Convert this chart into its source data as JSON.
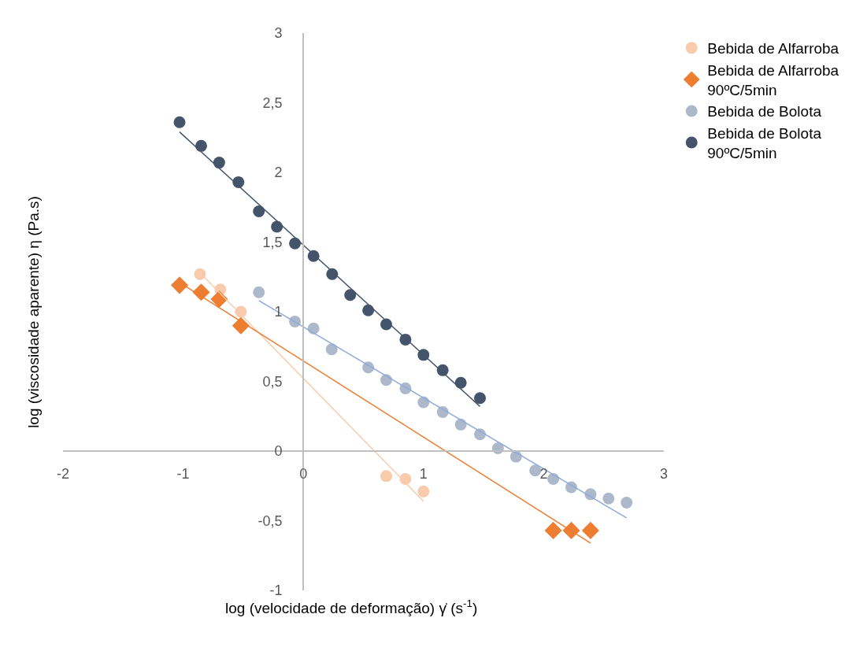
{
  "chart_data": {
    "type": "scatter",
    "xlabel": "log (velocidade de deformação) γ̇ (s$^{-1}$)",
    "ylabel": "log (viscosidade aparente) η (Pa.s)",
    "xlim": [
      -2,
      3
    ],
    "xticks": [
      -2,
      -1,
      0,
      1,
      2,
      3
    ],
    "ylim": [
      -1,
      3
    ],
    "yticks": [
      {
        "value": -1,
        "label": "-1"
      },
      {
        "value": -0.5,
        "label": "-0,5"
      },
      0,
      {
        "value": 0.5,
        "label": "0,5"
      },
      1,
      {
        "value": 1.5,
        "label": "1,5"
      },
      2,
      {
        "value": 2.5,
        "label": "2,5"
      },
      3
    ],
    "legend": "top right",
    "series": [
      {
        "name": "Bebida de Alfarroba",
        "color": "#f8cbad",
        "marker": "circle",
        "x": [
          -0.86,
          -0.69,
          -0.52,
          0.69,
          0.85,
          1.0
        ],
        "values": [
          1.27,
          1.16,
          1.0,
          -0.18,
          -0.2,
          -0.29
        ]
      },
      {
        "name": "Bebida de Alfarroba 90ºC/5min",
        "color": "#ed7d31",
        "marker": "diamond",
        "x": [
          -1.03,
          -0.85,
          -0.7,
          -0.52,
          2.08,
          2.23,
          2.39
        ],
        "values": [
          1.19,
          1.14,
          1.09,
          0.9,
          -0.57,
          -0.57,
          -0.57
        ]
      },
      {
        "name": "Bebida de Bolota",
        "color": "#adb9ca",
        "marker": "circle",
        "x": [
          -0.37,
          -0.07,
          0.085,
          0.236,
          0.54,
          0.69,
          0.85,
          1.0,
          1.16,
          1.31,
          1.47,
          1.62,
          1.77,
          1.93,
          2.08,
          2.23,
          2.39,
          2.54,
          2.69
        ],
        "values": [
          1.14,
          0.93,
          0.88,
          0.73,
          0.6,
          0.51,
          0.45,
          0.35,
          0.28,
          0.19,
          0.12,
          0.02,
          -0.04,
          -0.14,
          -0.2,
          -0.26,
          -0.31,
          -0.34,
          -0.37
        ]
      },
      {
        "name": "Bebida de Bolota 90ºC/5min",
        "color": "#44546a",
        "marker": "circle",
        "x": [
          -1.03,
          -0.85,
          -0.7,
          -0.54,
          -0.37,
          -0.22,
          -0.07,
          0.085,
          0.24,
          0.39,
          0.54,
          0.69,
          0.85,
          1.0,
          1.16,
          1.31,
          1.47
        ],
        "values": [
          2.36,
          2.19,
          2.07,
          1.93,
          1.72,
          1.61,
          1.49,
          1.4,
          1.27,
          1.12,
          1.01,
          0.91,
          0.8,
          0.69,
          0.58,
          0.49,
          0.38
        ]
      },
      {
        "type": "line",
        "color": "#f8cbad",
        "marker": "none",
        "x": [
          -0.86,
          1.0
        ],
        "values": [
          1.28,
          -0.36
        ]
      },
      {
        "type": "line",
        "color": "#ed7d31",
        "marker": "none",
        "x": [
          -1.03,
          2.39
        ],
        "values": [
          1.21,
          -0.66
        ]
      },
      {
        "type": "line",
        "color": "#8faadc",
        "marker": "none",
        "x": [
          -0.37,
          2.69
        ],
        "values": [
          1.08,
          -0.48
        ]
      },
      {
        "type": "line",
        "color": "#44546a",
        "marker": "none",
        "x": [
          -1.03,
          1.47
        ],
        "values": [
          2.29,
          0.32
        ]
      }
    ]
  }
}
